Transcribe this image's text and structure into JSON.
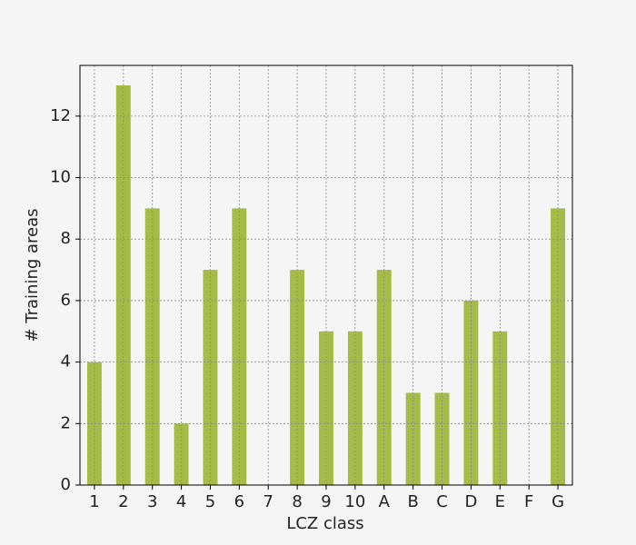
{
  "chart_data": {
    "type": "bar",
    "x_label": "LCZ class",
    "y_label": "# Training areas",
    "categories": [
      "1",
      "2",
      "3",
      "4",
      "5",
      "6",
      "7",
      "8",
      "9",
      "10",
      "A",
      "B",
      "C",
      "D",
      "E",
      "F",
      "G"
    ],
    "values": [
      4,
      13,
      9,
      2,
      7,
      9,
      0,
      7,
      5,
      5,
      7,
      3,
      3,
      6,
      5,
      0,
      9
    ],
    "color": "#a5bb45",
    "ylim": [
      0,
      13.65
    ],
    "yticks": [
      0,
      2,
      4,
      6,
      8,
      10,
      12
    ],
    "grid": true
  }
}
